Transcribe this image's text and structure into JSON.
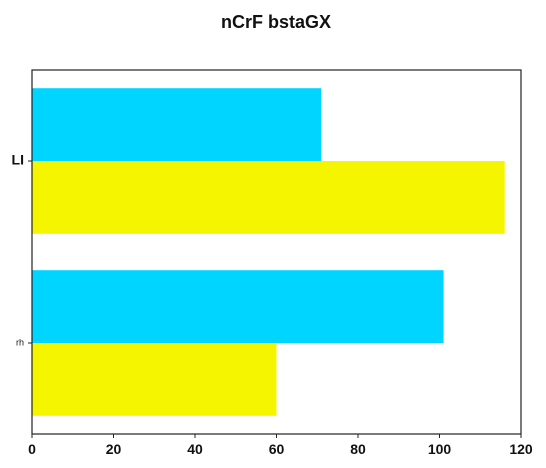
{
  "chart_data": {
    "type": "bar",
    "orientation": "horizontal",
    "title": "nCrF bstaGX",
    "xlabel": "",
    "ylabel": "",
    "categories": [
      "LI",
      "rh"
    ],
    "series": [
      {
        "values": [
          71,
          101
        ],
        "color": "#00d5ff"
      },
      {
        "values": [
          116,
          60
        ],
        "color": "#f5f500"
      }
    ],
    "xlim": [
      0,
      120
    ],
    "xticks": [
      0,
      20,
      40,
      60,
      80,
      100,
      120
    ],
    "grid": false,
    "legend": "none"
  }
}
